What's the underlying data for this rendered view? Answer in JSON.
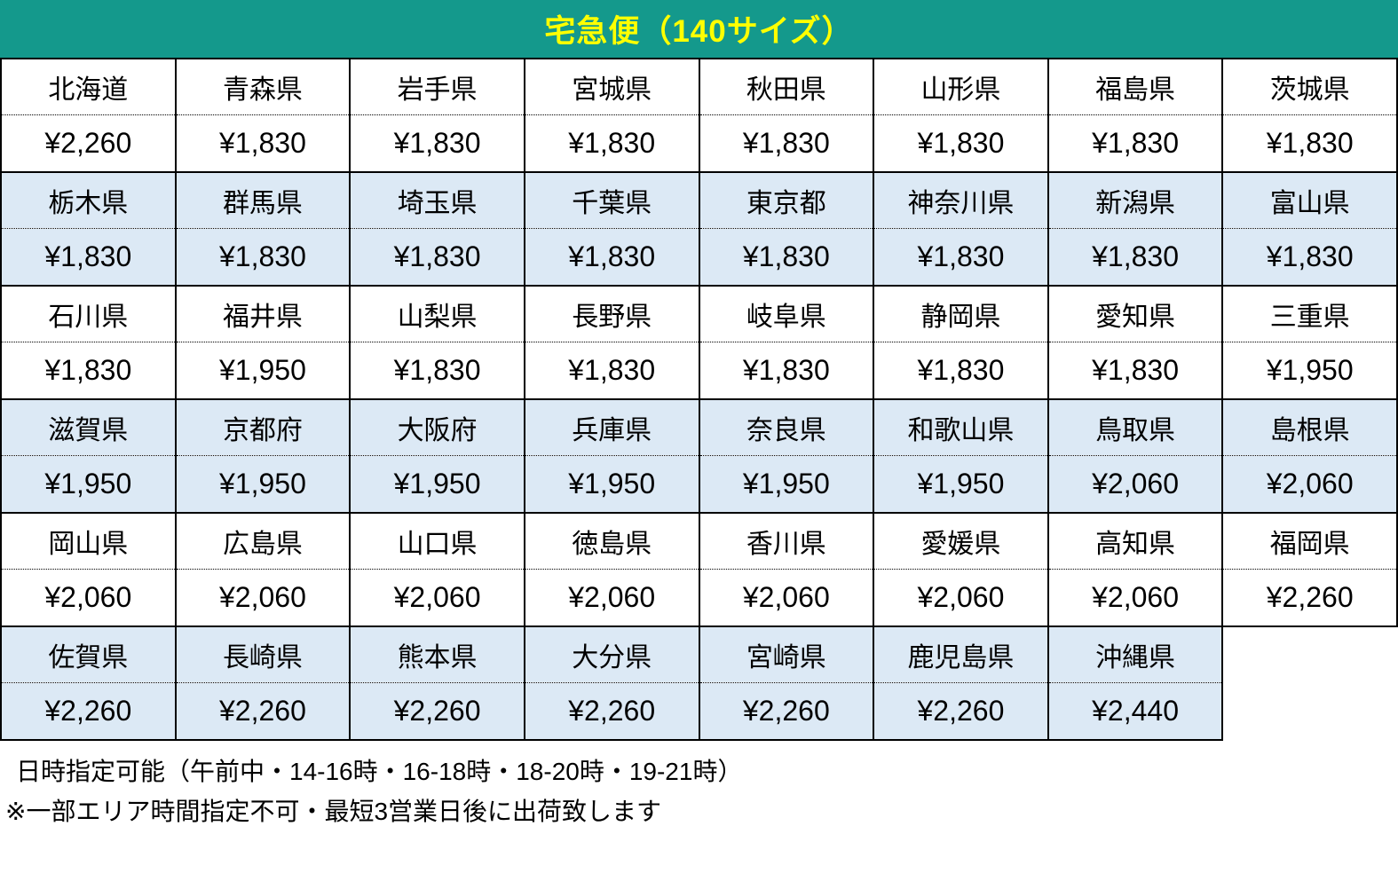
{
  "title": "宅急便（140サイズ）",
  "colors": {
    "header_bg": "#14998C",
    "header_text": "#FFFF00",
    "shaded_row_bg": "#DCE9F5",
    "plain_row_bg": "#FFFFFF",
    "border": "#000000"
  },
  "table": {
    "columns": 8,
    "groups": [
      {
        "shaded": false,
        "cells": [
          {
            "region": "北海道",
            "price": "¥2,260"
          },
          {
            "region": "青森県",
            "price": "¥1,830"
          },
          {
            "region": "岩手県",
            "price": "¥1,830"
          },
          {
            "region": "宮城県",
            "price": "¥1,830"
          },
          {
            "region": "秋田県",
            "price": "¥1,830"
          },
          {
            "region": "山形県",
            "price": "¥1,830"
          },
          {
            "region": "福島県",
            "price": "¥1,830"
          },
          {
            "region": "茨城県",
            "price": "¥1,830"
          }
        ]
      },
      {
        "shaded": true,
        "cells": [
          {
            "region": "栃木県",
            "price": "¥1,830"
          },
          {
            "region": "群馬県",
            "price": "¥1,830"
          },
          {
            "region": "埼玉県",
            "price": "¥1,830"
          },
          {
            "region": "千葉県",
            "price": "¥1,830"
          },
          {
            "region": "東京都",
            "price": "¥1,830"
          },
          {
            "region": "神奈川県",
            "price": "¥1,830"
          },
          {
            "region": "新潟県",
            "price": "¥1,830"
          },
          {
            "region": "富山県",
            "price": "¥1,830"
          }
        ]
      },
      {
        "shaded": false,
        "cells": [
          {
            "region": "石川県",
            "price": "¥1,830"
          },
          {
            "region": "福井県",
            "price": "¥1,950"
          },
          {
            "region": "山梨県",
            "price": "¥1,830"
          },
          {
            "region": "長野県",
            "price": "¥1,830"
          },
          {
            "region": "岐阜県",
            "price": "¥1,830"
          },
          {
            "region": "静岡県",
            "price": "¥1,830"
          },
          {
            "region": "愛知県",
            "price": "¥1,830"
          },
          {
            "region": "三重県",
            "price": "¥1,950"
          }
        ]
      },
      {
        "shaded": true,
        "cells": [
          {
            "region": "滋賀県",
            "price": "¥1,950"
          },
          {
            "region": "京都府",
            "price": "¥1,950"
          },
          {
            "region": "大阪府",
            "price": "¥1,950"
          },
          {
            "region": "兵庫県",
            "price": "¥1,950"
          },
          {
            "region": "奈良県",
            "price": "¥1,950"
          },
          {
            "region": "和歌山県",
            "price": "¥1,950"
          },
          {
            "region": "鳥取県",
            "price": "¥2,060"
          },
          {
            "region": "島根県",
            "price": "¥2,060"
          }
        ]
      },
      {
        "shaded": false,
        "cells": [
          {
            "region": "岡山県",
            "price": "¥2,060"
          },
          {
            "region": "広島県",
            "price": "¥2,060"
          },
          {
            "region": "山口県",
            "price": "¥2,060"
          },
          {
            "region": "徳島県",
            "price": "¥2,060"
          },
          {
            "region": "香川県",
            "price": "¥2,060"
          },
          {
            "region": "愛媛県",
            "price": "¥2,060"
          },
          {
            "region": "高知県",
            "price": "¥2,060"
          },
          {
            "region": "福岡県",
            "price": "¥2,260"
          }
        ]
      },
      {
        "shaded": true,
        "cells": [
          {
            "region": "佐賀県",
            "price": "¥2,260"
          },
          {
            "region": "長崎県",
            "price": "¥2,260"
          },
          {
            "region": "熊本県",
            "price": "¥2,260"
          },
          {
            "region": "大分県",
            "price": "¥2,260"
          },
          {
            "region": "宮崎県",
            "price": "¥2,260"
          },
          {
            "region": "鹿児島県",
            "price": "¥2,260"
          },
          {
            "region": "沖縄県",
            "price": "¥2,440"
          },
          null
        ]
      }
    ]
  },
  "footer": {
    "line1": "日時指定可能（午前中・14-16時・16-18時・18-20時・19-21時）",
    "line2": "※一部エリア時間指定不可・最短3営業日後に出荷致します"
  }
}
